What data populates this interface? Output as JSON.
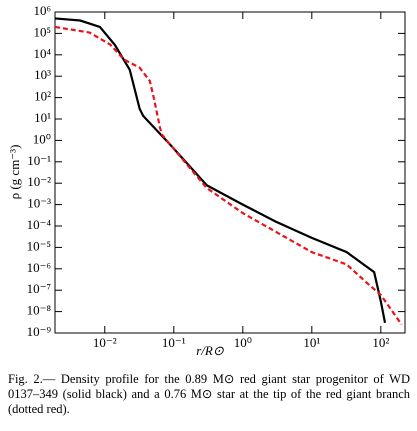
{
  "chart_data": {
    "type": "line",
    "xlabel": "r/R⊙",
    "ylabel": "ρ (g cm⁻³)",
    "xscale": "log",
    "yscale": "log",
    "xlim": [
      0.0019,
      224
    ],
    "ylim": [
      1e-09,
      1000000.0
    ],
    "xticks": [
      {
        "value": 0.01,
        "label": "10⁻²"
      },
      {
        "value": 0.1,
        "label": "10⁻¹"
      },
      {
        "value": 1,
        "label": "10⁰"
      },
      {
        "value": 10,
        "label": "10¹"
      },
      {
        "value": 100,
        "label": "10²"
      }
    ],
    "yticks": [
      {
        "value": 1e-09,
        "label": "10⁻⁹"
      },
      {
        "value": 1e-08,
        "label": "10⁻⁸"
      },
      {
        "value": 1e-07,
        "label": "10⁻⁷"
      },
      {
        "value": 1e-06,
        "label": "10⁻⁶"
      },
      {
        "value": 1e-05,
        "label": "10⁻⁵"
      },
      {
        "value": 0.0001,
        "label": "10⁻⁴"
      },
      {
        "value": 0.001,
        "label": "10⁻³"
      },
      {
        "value": 0.01,
        "label": "10⁻²"
      },
      {
        "value": 0.1,
        "label": "10⁻¹"
      },
      {
        "value": 1,
        "label": "10⁰"
      },
      {
        "value": 10,
        "label": "10¹"
      },
      {
        "value": 100,
        "label": "10²"
      },
      {
        "value": 1000,
        "label": "10³"
      },
      {
        "value": 10000,
        "label": "10⁴"
      },
      {
        "value": 100000,
        "label": "10⁵"
      },
      {
        "value": 1000000,
        "label": "10⁶"
      }
    ],
    "series": [
      {
        "color": "#000000",
        "dash": "solid",
        "x": [
          0.0019,
          0.0044,
          0.0085,
          0.014,
          0.023,
          0.032,
          0.036,
          0.09,
          0.3,
          1,
          3,
          10,
          32,
          80,
          100,
          115
        ],
        "values": [
          500000.0,
          400000.0,
          200000.0,
          29000.0,
          2000.0,
          30,
          14,
          0.6,
          0.008,
          0.001,
          0.00016,
          2.8e-05,
          6e-06,
          7e-07,
          3e-08,
          3e-09
        ]
      },
      {
        "color": "#e8141b",
        "dash": "dashed",
        "x": [
          0.0019,
          0.006,
          0.012,
          0.019,
          0.032,
          0.045,
          0.052,
          0.063,
          0.068,
          0.09,
          0.3,
          1,
          10,
          32,
          60,
          100,
          200
        ],
        "values": [
          200000.0,
          110000.0,
          30000.0,
          6000.0,
          2500.0,
          600,
          80,
          4,
          1.8,
          0.6,
          0.006,
          0.0004,
          6e-06,
          1.6e-06,
          2.5e-07,
          6e-08,
          2.5e-09
        ]
      }
    ]
  },
  "caption": "Fig. 2.— Density profile for the 0.89 M⊙ red giant star progenitor of WD 0137–349 (solid black) and a 0.76 M⊙ star at the tip of the red giant branch (dotted red)."
}
